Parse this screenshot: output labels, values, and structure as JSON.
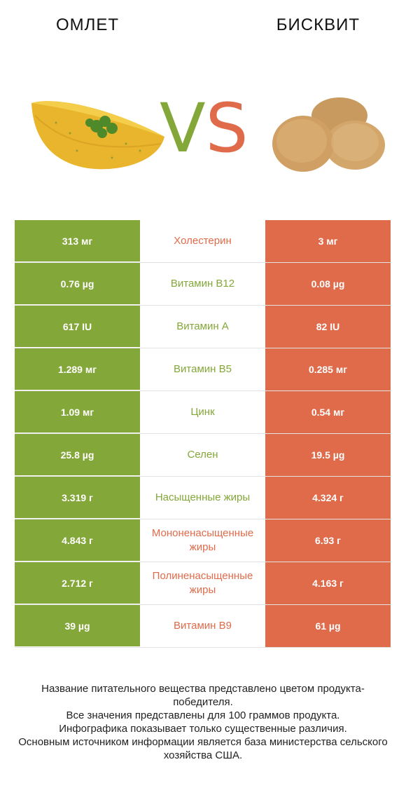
{
  "header": {
    "left_title": "ОМЛЕТ",
    "right_title": "БИСКВИТ"
  },
  "vs": {
    "v": "V",
    "s": "S"
  },
  "colors": {
    "winner_left": "#84a739",
    "winner_right": "#e06b4b"
  },
  "rows": [
    {
      "left": "313 мг",
      "name": "Холестерин",
      "right": "3 мг",
      "winner": "right"
    },
    {
      "left": "0.76 µg",
      "name": "Витамин B12",
      "right": "0.08 µg",
      "winner": "left"
    },
    {
      "left": "617 IU",
      "name": "Витамин A",
      "right": "82 IU",
      "winner": "left"
    },
    {
      "left": "1.289 мг",
      "name": "Витамин B5",
      "right": "0.285 мг",
      "winner": "left"
    },
    {
      "left": "1.09 мг",
      "name": "Цинк",
      "right": "0.54 мг",
      "winner": "left"
    },
    {
      "left": "25.8 µg",
      "name": "Селен",
      "right": "19.5 µg",
      "winner": "left"
    },
    {
      "left": "3.319 г",
      "name": "Насыщенные жиры",
      "right": "4.324 г",
      "winner": "left"
    },
    {
      "left": "4.843 г",
      "name": "Мононенасыщенные жиры",
      "right": "6.93 г",
      "winner": "right"
    },
    {
      "left": "2.712 г",
      "name": "Полиненасыщенные жиры",
      "right": "4.163 г",
      "winner": "right"
    },
    {
      "left": "39 µg",
      "name": "Витамин B9",
      "right": "61 µg",
      "winner": "right"
    }
  ],
  "footer": {
    "line1": "Название питательного вещества представлено цветом продукта-победителя.",
    "line2": "Все значения представлены для 100 граммов продукта.",
    "line3": "Инфографика показывает только существенные различия.",
    "line4": "Основным источником информации является база министерства сельского хозяйства США."
  }
}
